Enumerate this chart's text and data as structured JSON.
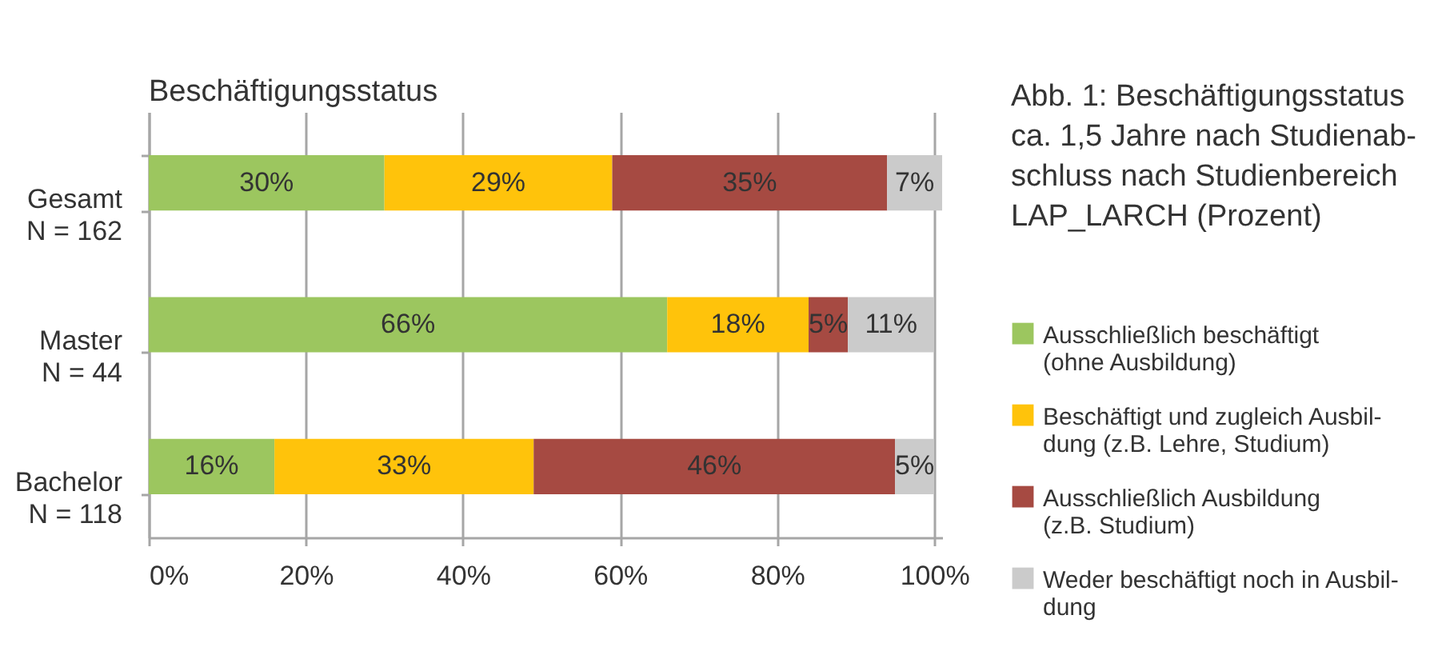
{
  "chart_data": {
    "type": "bar",
    "orientation": "horizontal",
    "stacked": true,
    "title": "Beschäftigungsstatus",
    "annotations": [
      "Abb. 1: Beschäftigungsstatus\nca. 1,5 Jahre nach Studienab-\nschluss nach Studienbereich\nLAP_LARCH (Prozent)"
    ],
    "categories": [
      "Gesamt\nN = 162",
      "Master\nN = 44",
      "Bachelor\nN = 118"
    ],
    "series": [
      {
        "name": "Ausschließlich beschäftigt\n(ohne Ausbildung)",
        "color": "#9cc65f",
        "values": [
          30,
          66,
          16
        ],
        "value_labels": [
          "30%",
          "66%",
          "16%"
        ]
      },
      {
        "name": "Beschäftigt und zugleich Ausbil-\ndung (z.B. Lehre, Studium)",
        "color": "#ffc30b",
        "values": [
          29,
          18,
          33
        ],
        "value_labels": [
          "29%",
          "18%",
          "33%"
        ]
      },
      {
        "name": "Ausschließlich Ausbildung\n(z.B. Studium)",
        "color": "#a64a42",
        "values": [
          35,
          5,
          46
        ],
        "value_labels": [
          "35%",
          "5%",
          "46%"
        ]
      },
      {
        "name": "Weder beschäftigt noch in Ausbil-\ndung",
        "color": "#cbcbcb",
        "values": [
          7,
          11,
          5
        ],
        "value_labels": [
          "7%",
          "11%",
          "5%"
        ]
      }
    ],
    "xlim": [
      0,
      101
    ],
    "xticks": [
      {
        "value": 0,
        "label": "0%"
      },
      {
        "value": 20,
        "label": "20%"
      },
      {
        "value": 40,
        "label": "40%"
      },
      {
        "value": 60,
        "label": "60%"
      },
      {
        "value": 80,
        "label": "80%"
      },
      {
        "value": 100,
        "label": "100%"
      }
    ],
    "grid": "x",
    "legend": "right"
  }
}
